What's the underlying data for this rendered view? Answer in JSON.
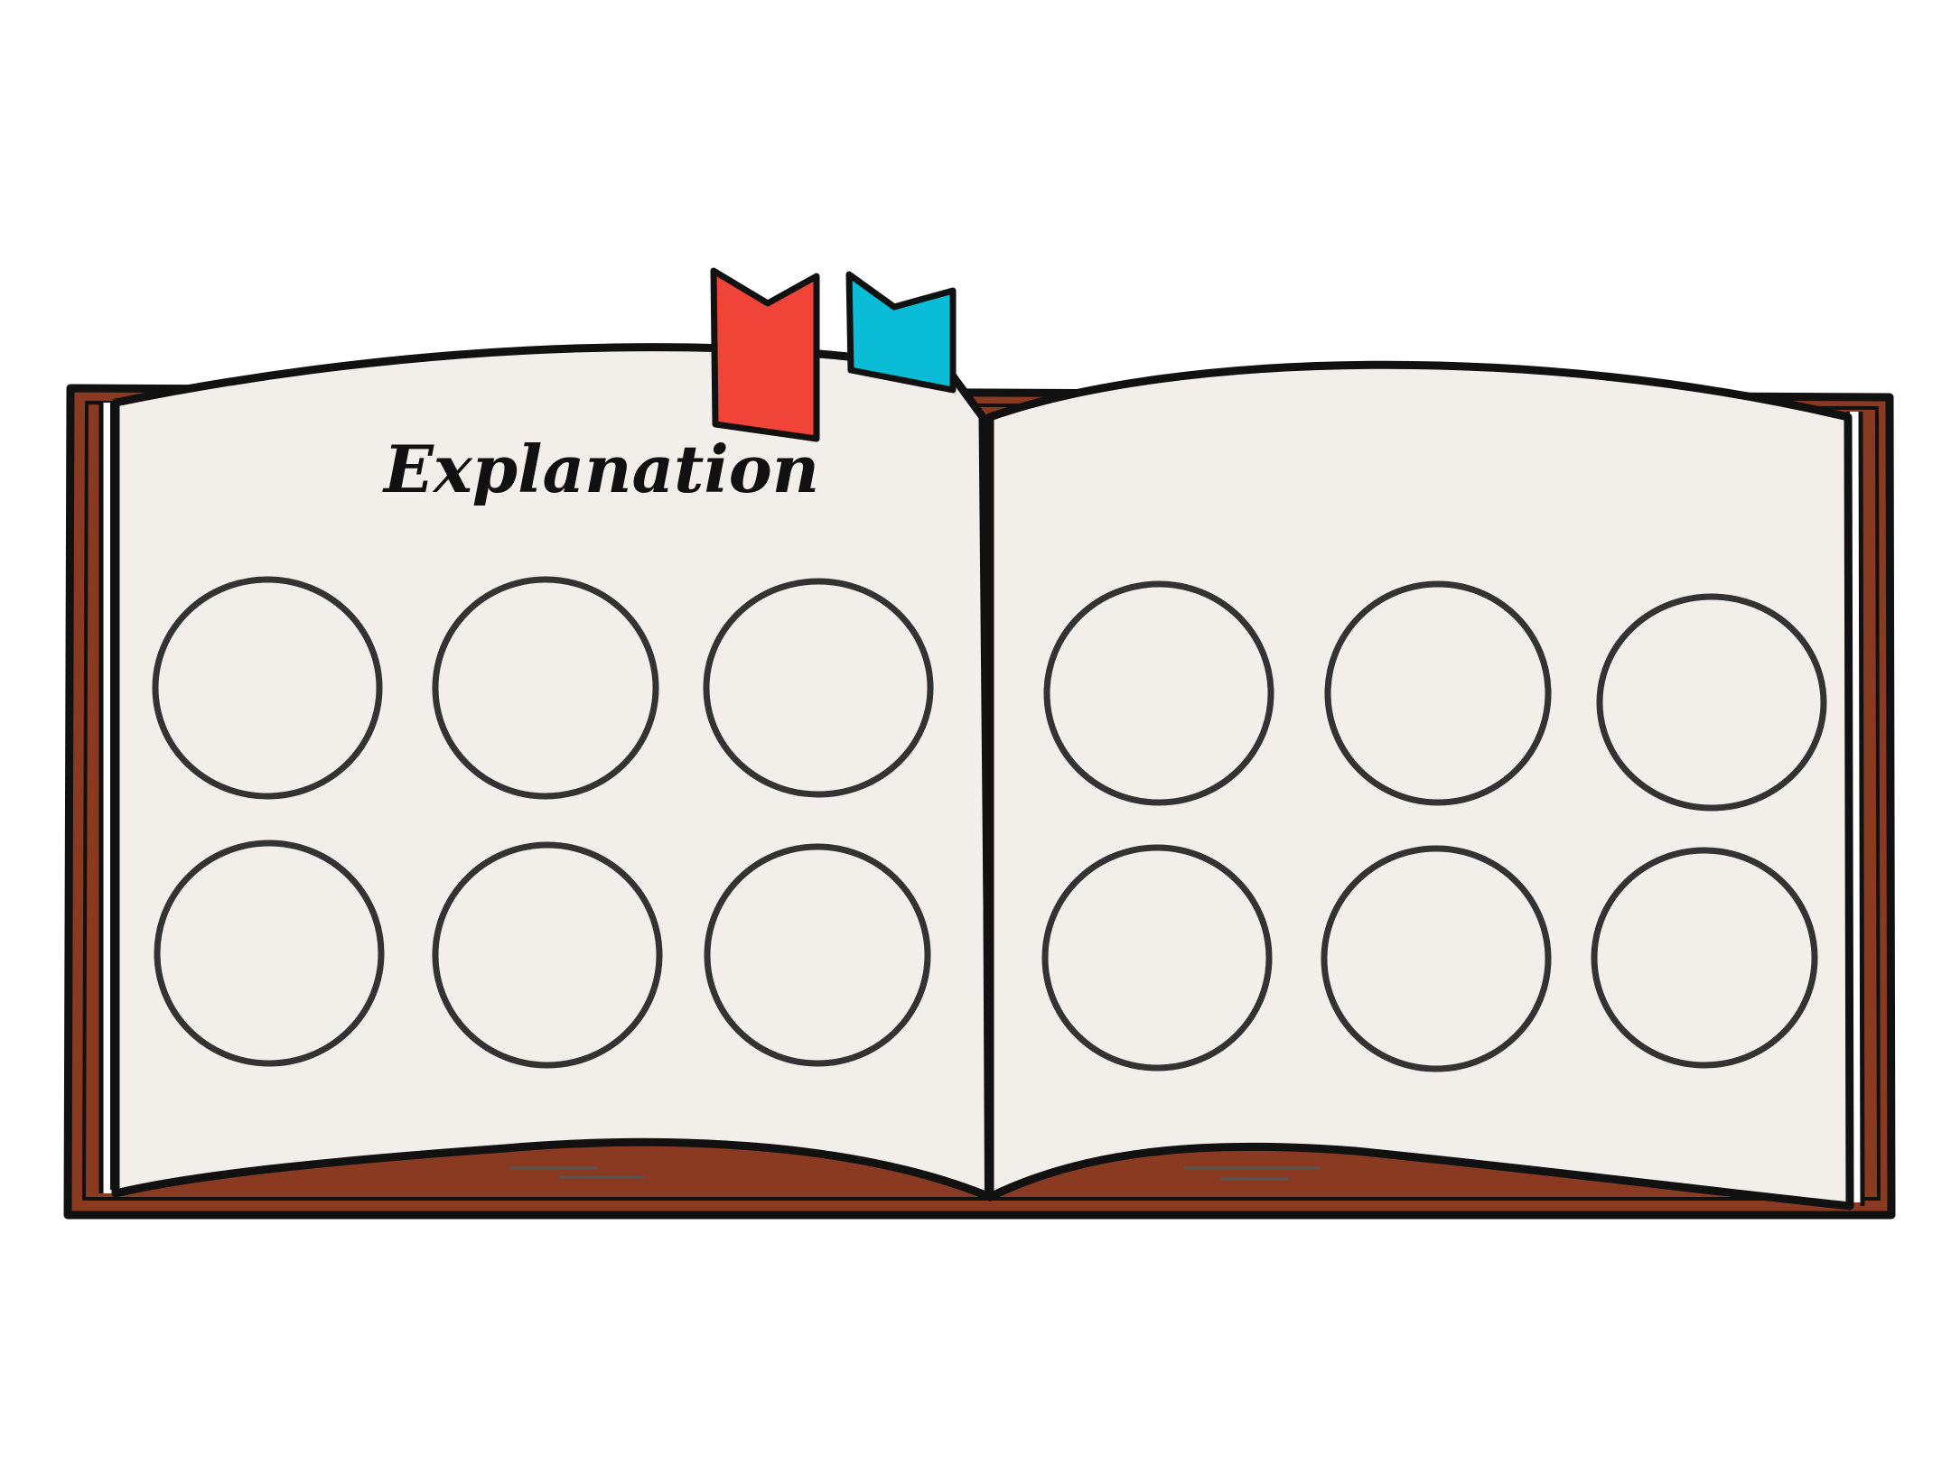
{
  "page": {
    "title": "Explanation"
  },
  "colors": {
    "background": "#ffffff",
    "paper": "#f2eeea",
    "cover": "#8b3a22",
    "outline": "#111111",
    "circle_stroke": "#333333",
    "bookmark_red": "#f04438",
    "bookmark_blue": "#0bbcd6"
  },
  "left_page": {
    "circles": [
      {
        "name": "left-circle-r1c1"
      },
      {
        "name": "left-circle-r1c2"
      },
      {
        "name": "left-circle-r1c3"
      },
      {
        "name": "left-circle-r2c1"
      },
      {
        "name": "left-circle-r2c2"
      },
      {
        "name": "left-circle-r2c3"
      }
    ]
  },
  "right_page": {
    "circles": [
      {
        "name": "right-circle-r1c1"
      },
      {
        "name": "right-circle-r1c2"
      },
      {
        "name": "right-circle-r1c3"
      },
      {
        "name": "right-circle-r2c1"
      },
      {
        "name": "right-circle-r2c2"
      },
      {
        "name": "right-circle-r2c3"
      }
    ]
  },
  "bookmarks": [
    {
      "name": "red-bookmark",
      "color_key": "bookmark_red"
    },
    {
      "name": "blue-bookmark",
      "color_key": "bookmark_blue"
    }
  ]
}
